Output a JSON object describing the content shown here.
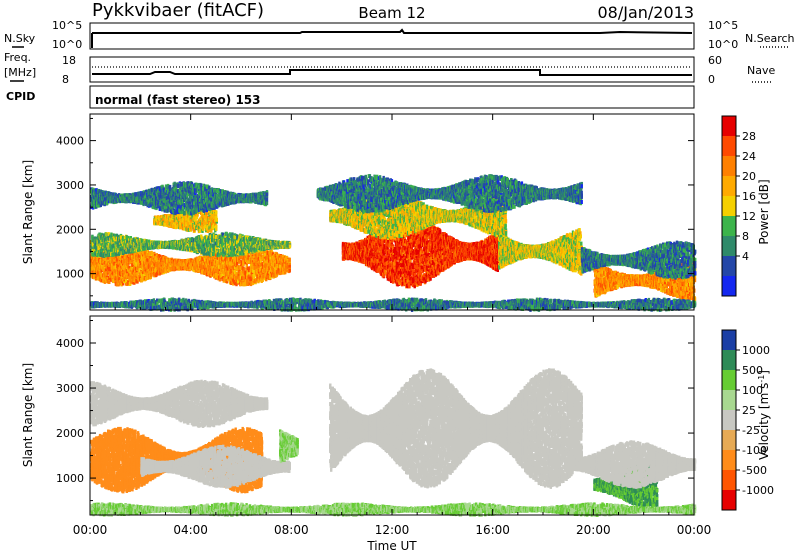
{
  "header": {
    "title": "Pykkvibaer (fitACF)",
    "beam": "Beam 12",
    "date": "08/Jan/2013"
  },
  "top_panels": {
    "nsky_label": "N.Sky",
    "nsky_ticks": [
      "10^5",
      "10^0"
    ],
    "nsearch_label": "N.Search",
    "nsearch_ticks": [
      "10^5",
      "10^0"
    ],
    "freq_label_1": "Freq.",
    "freq_label_2": "[MHz]",
    "freq_ticks": [
      "18",
      "8"
    ],
    "nave_label": "Nave",
    "nave_ticks": [
      "60",
      "0"
    ],
    "cpid_label": "CPID",
    "cpid_text": "normal (fast stereo) 153"
  },
  "x_axis": {
    "label": "Time UT",
    "ticks": [
      "00:00",
      "04:00",
      "08:00",
      "12:00",
      "16:00",
      "20:00",
      "00:00"
    ]
  },
  "power_colorbar": {
    "label": "Power [dB]",
    "ticks": [
      "28",
      "24",
      "20",
      "16",
      "12",
      "8",
      "4"
    ],
    "colors": [
      "#e60000",
      "#ff4a00",
      "#ff8000",
      "#ffaa00",
      "#f5d000",
      "#3cb44b",
      "#2f8a6a",
      "#2447a8",
      "#1428f0"
    ]
  },
  "velocity_colorbar": {
    "label": "Velocity [m s",
    "label_sup": "-1",
    "label_end": "]",
    "ticks": [
      "1000",
      "500",
      "100",
      "25",
      "-25",
      "-100",
      "-500",
      "-1000"
    ],
    "colors": [
      "#1b3fa5",
      "#2e8b57",
      "#66cc33",
      "#a8d890",
      "#c8c8c2",
      "#e6aa55",
      "#ff8c1a",
      "#ff5500",
      "#e60000"
    ]
  },
  "chart_data": [
    {
      "type": "heatmap",
      "title": "Power",
      "ylabel": "Slant Range [km]",
      "xlabel": "",
      "ylim": [
        180,
        4600
      ],
      "xlim": [
        "00:00",
        "24:00"
      ],
      "y_ticks": [
        1000,
        2000,
        3000,
        4000
      ],
      "colorbar_label": "Power [dB]",
      "colorbar_range": [
        0,
        32
      ],
      "regions": [
        {
          "t0": 0.0,
          "t1": 7.9,
          "r_center": 1200,
          "r_width": 450,
          "value": 22
        },
        {
          "t0": 0.0,
          "t1": 7.9,
          "r_center": 1650,
          "r_width": 250,
          "value": 12
        },
        {
          "t0": 2.5,
          "t1": 5.0,
          "r_center": 2200,
          "r_width": 250,
          "value": 18
        },
        {
          "t0": 0.0,
          "t1": 7.0,
          "r_center": 2700,
          "r_width": 350,
          "value": 8
        },
        {
          "t0": 10.0,
          "t1": 16.2,
          "r_center": 1500,
          "r_width": 800,
          "value": 28
        },
        {
          "t0": 9.5,
          "t1": 16.5,
          "r_center": 2300,
          "r_width": 500,
          "value": 16
        },
        {
          "t0": 9.0,
          "t1": 19.5,
          "r_center": 2800,
          "r_width": 400,
          "value": 8
        },
        {
          "t0": 16.2,
          "t1": 19.5,
          "r_center": 1500,
          "r_width": 550,
          "value": 16
        },
        {
          "t0": 20.0,
          "t1": 24.0,
          "r_center": 850,
          "r_width": 450,
          "value": 22
        },
        {
          "t0": 19.5,
          "t1": 24.0,
          "r_center": 1300,
          "r_width": 400,
          "value": 8
        },
        {
          "t0": 0.0,
          "t1": 24.0,
          "r_center": 300,
          "r_width": 120,
          "value": 8
        }
      ]
    },
    {
      "type": "heatmap",
      "title": "Velocity",
      "ylabel": "Slant Range [km]",
      "xlabel": "Time UT",
      "ylim": [
        180,
        4600
      ],
      "xlim": [
        "00:00",
        "24:00"
      ],
      "y_ticks": [
        1000,
        2000,
        3000,
        4000
      ],
      "colorbar_label": "Velocity [m s-1]",
      "colorbar_range": [
        -1000,
        1000
      ],
      "regions": [
        {
          "t0": 0.0,
          "t1": 6.8,
          "r_center": 1400,
          "r_width": 700,
          "value": -300
        },
        {
          "t0": 2.0,
          "t1": 7.9,
          "r_center": 1250,
          "r_width": 450,
          "value": 0
        },
        {
          "t0": 0.0,
          "t1": 7.0,
          "r_center": 2650,
          "r_width": 500,
          "value": 0
        },
        {
          "t0": 9.5,
          "t1": 19.5,
          "r_center": 2100,
          "r_width": 1300,
          "value": 0
        },
        {
          "t0": 20.0,
          "t1": 22.5,
          "r_center": 850,
          "r_width": 500,
          "value": 500
        },
        {
          "t0": 19.0,
          "t1": 24.0,
          "r_center": 1300,
          "r_width": 500,
          "value": 0
        },
        {
          "t0": 7.5,
          "t1": 8.2,
          "r_center": 1700,
          "r_width": 600,
          "value": 100
        },
        {
          "t0": 0.0,
          "t1": 24.0,
          "r_center": 300,
          "r_width": 120,
          "value": 100
        }
      ]
    }
  ]
}
